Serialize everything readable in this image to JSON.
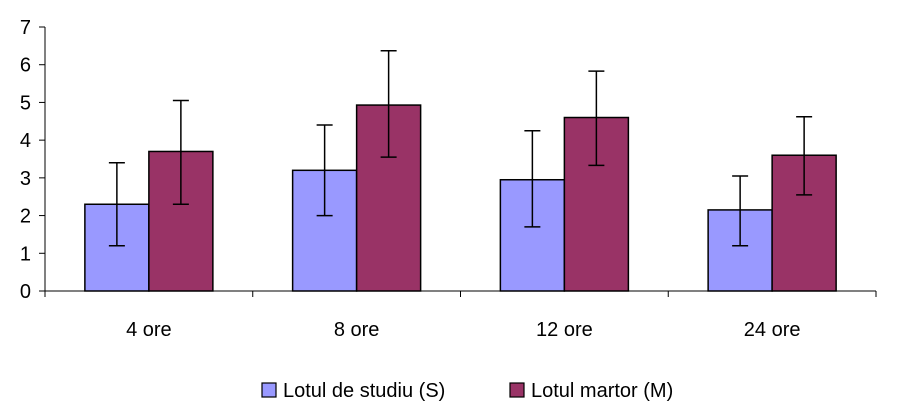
{
  "chart_data": {
    "type": "bar",
    "categories": [
      "4 ore",
      "8 ore",
      "12 ore",
      "24 ore"
    ],
    "series": [
      {
        "name": "Lotul de studiu (S)",
        "color": "#9999ff",
        "values": [
          2.3,
          3.2,
          2.95,
          2.15
        ],
        "error_low": [
          1.2,
          2.0,
          1.7,
          1.2
        ],
        "error_high": [
          3.4,
          4.4,
          4.25,
          3.05
        ]
      },
      {
        "name": "Lotul martor (M)",
        "color": "#993366",
        "values": [
          3.7,
          4.93,
          4.6,
          3.6
        ],
        "error_low": [
          2.3,
          3.55,
          3.33,
          2.55
        ],
        "error_high": [
          5.05,
          6.37,
          5.83,
          4.62
        ]
      }
    ],
    "title": "",
    "xlabel": "",
    "ylabel": "",
    "ylim": [
      0,
      7
    ],
    "yticks": [
      "0",
      "1",
      "2",
      "3",
      "4",
      "5",
      "6",
      "7"
    ],
    "grid": false,
    "legend": "bottom"
  }
}
